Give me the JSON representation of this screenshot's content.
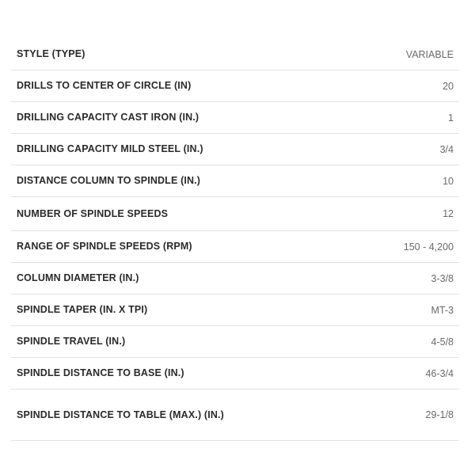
{
  "specs": [
    {
      "label": "STYLE (TYPE)",
      "value": "VARIABLE"
    },
    {
      "label": "DRILLS TO CENTER OF CIRCLE (IN)",
      "value": "20"
    },
    {
      "label": "DRILLING CAPACITY CAST IRON (IN.)",
      "value": "1"
    },
    {
      "label": "DRILLING CAPACITY MILD STEEL (IN.)",
      "value": "3/4"
    },
    {
      "label": "DISTANCE COLUMN TO SPINDLE (IN.)",
      "value": "10"
    },
    {
      "label": "NUMBER OF SPINDLE SPEEDS",
      "value": "12"
    },
    {
      "label": "RANGE OF SPINDLE SPEEDS (RPM)",
      "value": "150 - 4,200"
    },
    {
      "label": "COLUMN DIAMETER (IN.)",
      "value": "3-3/8"
    },
    {
      "label": "SPINDLE TAPER (IN. X TPI)",
      "value": "MT-3"
    },
    {
      "label": "SPINDLE TRAVEL (IN.)",
      "value": "4-5/8"
    },
    {
      "label": "SPINDLE DISTANCE TO BASE (IN.)",
      "value": "46-3/4"
    },
    {
      "label": "SPINDLE DISTANCE TO TABLE (MAX.) (IN.)",
      "value": "29-1/8"
    }
  ]
}
